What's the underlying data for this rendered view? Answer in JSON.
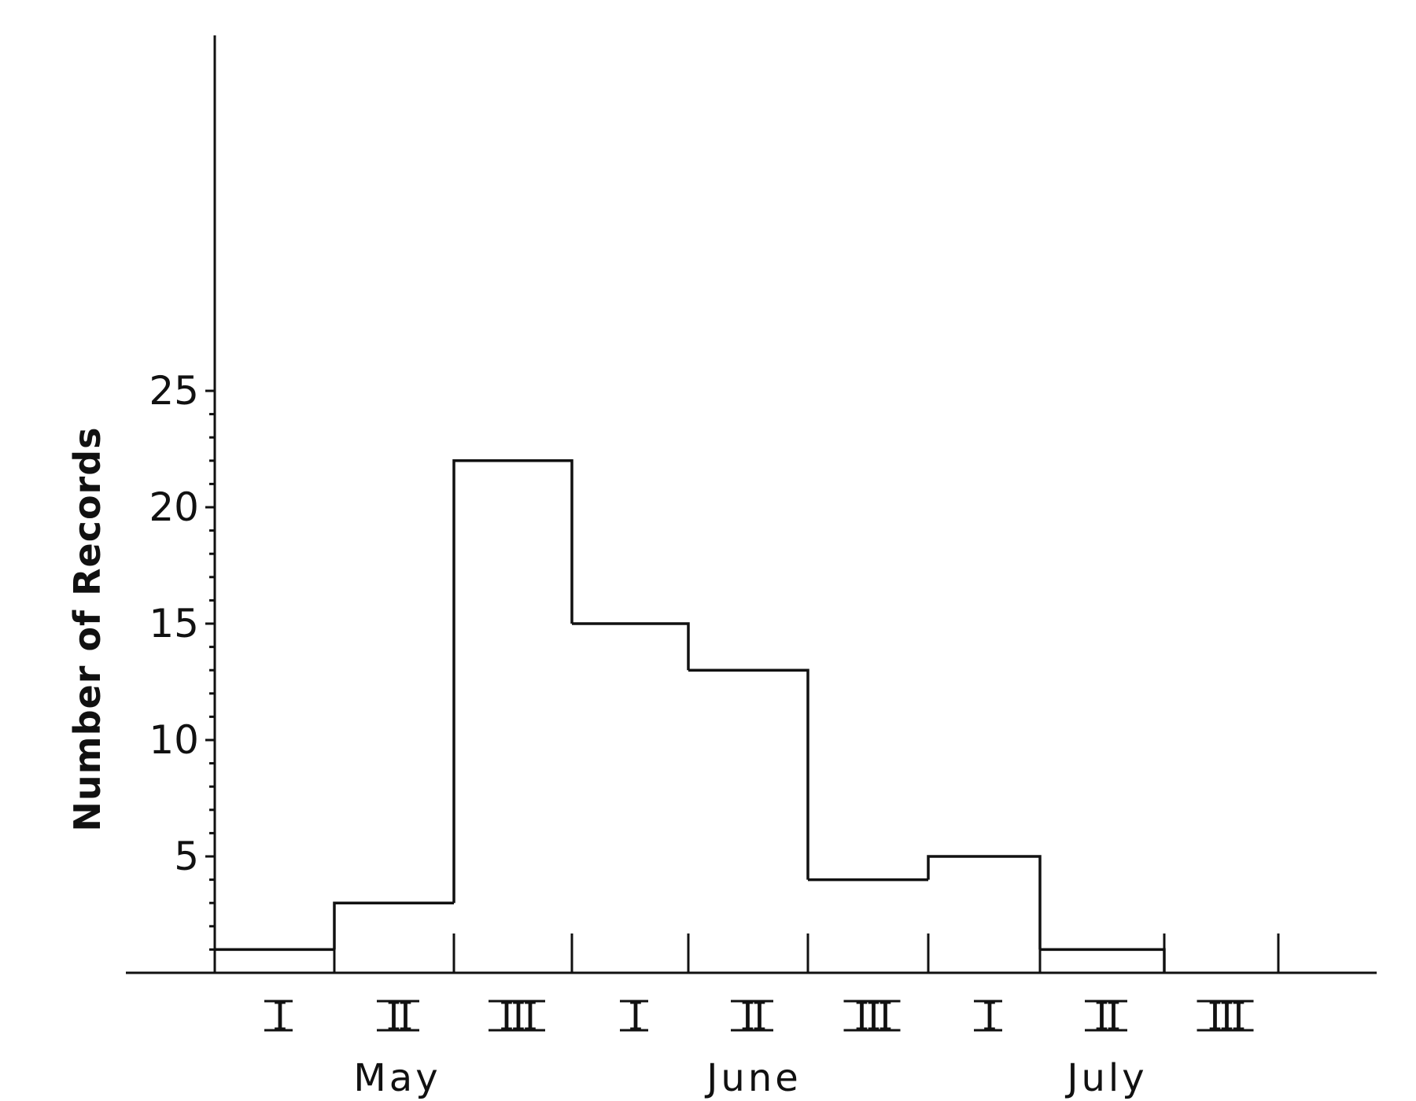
{
  "chart_data": {
    "type": "bar",
    "style": "histogram-step",
    "ylabel": "Number of Records",
    "xlabel": "",
    "ylim": [
      0,
      40
    ],
    "yticks": [
      5,
      10,
      15,
      20,
      25
    ],
    "minor_tick_step": 1,
    "grid": false,
    "categories": [
      "I",
      "II",
      "III",
      "I",
      "II",
      "III",
      "I",
      "II",
      "III"
    ],
    "groups": [
      {
        "label": "May",
        "start": 0,
        "count": 3
      },
      {
        "label": "June",
        "start": 3,
        "count": 3
      },
      {
        "label": "July",
        "start": 6,
        "count": 3
      }
    ],
    "values": [
      1,
      3,
      22,
      15,
      13,
      4,
      5,
      1,
      0
    ]
  }
}
